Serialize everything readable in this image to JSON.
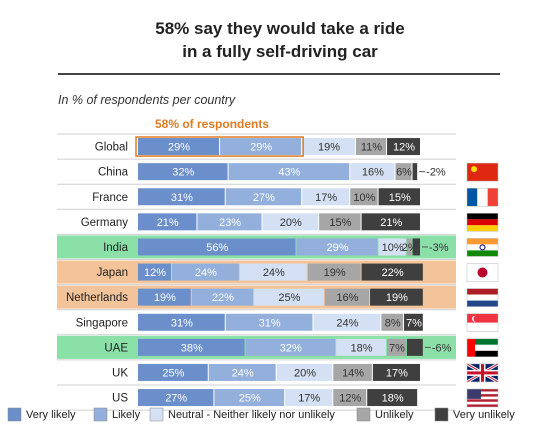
{
  "title_line1": "58% say they would take a ride",
  "title_line2": "in a fully self-driving car",
  "subtitle": "In % of respondents per country",
  "annotation": "58% of respondents",
  "colors": {
    "very_likely": "#6A8FCB",
    "likely": "#93B0DD",
    "neutral": "#D4E0F3",
    "unlikely": "#A6A6A6",
    "very_unlikely": "#3F3F3F",
    "highlight_green": "#8BE0A8",
    "highlight_orange": "#F3C39A",
    "annotation_orange": "#E07B22"
  },
  "chart_data": {
    "type": "bar",
    "orientation": "horizontal",
    "stacked": true,
    "categories": [
      "Global",
      "China",
      "France",
      "Germany",
      "India",
      "Japan",
      "Netherlands",
      "Singapore",
      "UAE",
      "UK",
      "US"
    ],
    "series": [
      {
        "name": "Very likely",
        "values": [
          29,
          32,
          31,
          21,
          56,
          12,
          19,
          31,
          38,
          25,
          27
        ]
      },
      {
        "name": "Likely",
        "values": [
          29,
          43,
          27,
          23,
          29,
          24,
          22,
          31,
          32,
          24,
          25
        ]
      },
      {
        "name": "Neutral - Neither likely nor unlikely",
        "values": [
          19,
          16,
          17,
          20,
          10,
          24,
          25,
          24,
          18,
          20,
          17
        ]
      },
      {
        "name": "Unlikely",
        "values": [
          11,
          6,
          10,
          15,
          2,
          19,
          16,
          8,
          7,
          14,
          12
        ]
      },
      {
        "name": "Very unlikely",
        "values": [
          12,
          2,
          15,
          21,
          3,
          22,
          19,
          7,
          6,
          17,
          18
        ]
      }
    ],
    "labels": [
      [
        "29%",
        "29%",
        "19%",
        "11%",
        "12%"
      ],
      [
        "32%",
        "43%",
        "16%",
        "6%",
        "2%"
      ],
      [
        "31%",
        "27%",
        "17%",
        "10%",
        "15%"
      ],
      [
        "21%",
        "23%",
        "20%",
        "15%",
        "21%"
      ],
      [
        "56%",
        "29%",
        "10%",
        "2%",
        "3%"
      ],
      [
        "12%",
        "24%",
        "24%",
        "19%",
        "22%"
      ],
      [
        "19%",
        "22%",
        "25%",
        "16%",
        "19%"
      ],
      [
        "31%",
        "31%",
        "24%",
        "8%",
        "7%"
      ],
      [
        "38%",
        "32%",
        "18%",
        "7%",
        "6%"
      ],
      [
        "25%",
        "24%",
        "20%",
        "14%",
        "17%"
      ],
      [
        "27%",
        "25%",
        "17%",
        "12%",
        "18%"
      ]
    ],
    "outside_label": [
      null,
      true,
      null,
      null,
      true,
      null,
      null,
      null,
      true,
      null,
      null
    ],
    "row_highlight": [
      "none",
      "none",
      "none",
      "none",
      "green",
      "orange",
      "orange",
      "none",
      "green",
      "none",
      "none"
    ],
    "flags": [
      null,
      "china-flag-icon",
      "france-flag-icon",
      "germany-flag-icon",
      "india-flag-icon",
      "japan-flag-icon",
      "netherlands-flag-icon",
      "singapore-flag-icon",
      "uae-flag-icon",
      "uk-flag-icon",
      "us-flag-icon"
    ],
    "xlim": [
      0,
      100
    ],
    "grid": false,
    "legend_position": "bottom"
  }
}
